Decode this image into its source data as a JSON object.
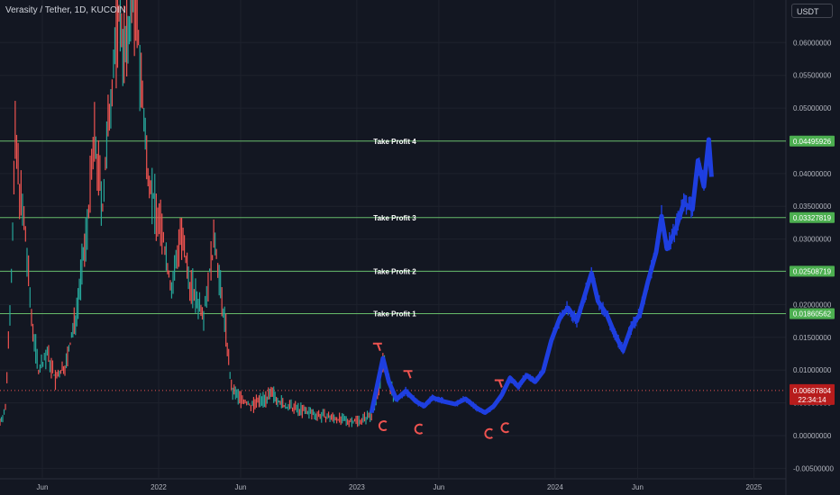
{
  "header": {
    "symbol_title": "Verasity / Tether, 1D, KUCOIN",
    "currency": "USDT"
  },
  "colors": {
    "background": "#131722",
    "up": "#26a69a",
    "down": "#ef5350",
    "projection": "#1e3fe0",
    "tp_line": "#66bb6a",
    "tp_badge": "#4caf50",
    "price_badge": "#b71c1c",
    "arc_color": "#ef5350"
  },
  "chart_data": {
    "type": "line",
    "title": "Verasity / Tether, 1D, KUCOIN",
    "xlabel": "",
    "ylabel": "",
    "y_ticks": [
      "0.06000000",
      "0.05500000",
      "0.05000000",
      "0.04500000",
      "0.04000000",
      "0.03500000",
      "0.03000000",
      "0.02500000",
      "0.02000000",
      "0.01500000",
      "0.01000000",
      "0.00500000",
      "0.00000000",
      "-0.00500000"
    ],
    "y_tick_values": [
      0.06,
      0.055,
      0.05,
      0.045,
      0.04,
      0.035,
      0.03,
      0.025,
      0.02,
      0.015,
      0.01,
      0.005,
      0.0,
      -0.005
    ],
    "ylim": [
      -0.0066,
      0.0665
    ],
    "x_ticks": [
      "Jun",
      "2022",
      "Jun",
      "2023",
      "Jun",
      "2024",
      "Jun",
      "2025"
    ],
    "x_tick_dates": [
      "2021-06-01",
      "2022-01-01",
      "2022-06-01",
      "2023-01-01",
      "2023-06-01",
      "2024-01-01",
      "2024-06-01",
      "2025-01-01"
    ],
    "xlim": [
      "2021-03-15",
      "2025-03-01"
    ],
    "series": [
      {
        "kind": "price-history",
        "points": [
          [
            "2021-03-15",
            0.0021
          ],
          [
            "2021-03-25",
            0.004
          ],
          [
            "2021-04-05",
            0.025
          ],
          [
            "2021-04-12",
            0.045
          ],
          [
            "2021-04-20",
            0.038
          ],
          [
            "2021-05-01",
            0.03
          ],
          [
            "2021-05-12",
            0.018
          ],
          [
            "2021-05-25",
            0.01
          ],
          [
            "2021-06-10",
            0.0125
          ],
          [
            "2021-06-25",
            0.0085
          ],
          [
            "2021-07-15",
            0.011
          ],
          [
            "2021-08-01",
            0.018
          ],
          [
            "2021-08-20",
            0.03
          ],
          [
            "2021-09-05",
            0.045
          ],
          [
            "2021-09-20",
            0.035
          ],
          [
            "2021-10-05",
            0.052
          ],
          [
            "2021-10-20",
            0.065
          ],
          [
            "2021-11-01",
            0.058
          ],
          [
            "2021-11-15",
            0.068
          ],
          [
            "2021-11-25",
            0.06
          ],
          [
            "2021-12-10",
            0.042
          ],
          [
            "2021-12-25",
            0.035
          ],
          [
            "2022-01-10",
            0.03
          ],
          [
            "2022-01-25",
            0.022
          ],
          [
            "2022-02-10",
            0.031
          ],
          [
            "2022-02-25",
            0.024
          ],
          [
            "2022-03-10",
            0.021
          ],
          [
            "2022-03-25",
            0.019
          ],
          [
            "2022-04-05",
            0.025
          ],
          [
            "2022-04-15",
            0.03
          ],
          [
            "2022-04-25",
            0.022
          ],
          [
            "2022-05-05",
            0.016
          ],
          [
            "2022-05-15",
            0.007
          ],
          [
            "2022-05-30",
            0.0058
          ],
          [
            "2022-06-20",
            0.0045
          ],
          [
            "2022-07-10",
            0.0055
          ],
          [
            "2022-08-01",
            0.0062
          ],
          [
            "2022-08-20",
            0.0045
          ],
          [
            "2022-09-15",
            0.004
          ],
          [
            "2022-10-15",
            0.0033
          ],
          [
            "2022-11-10",
            0.0028
          ],
          [
            "2022-12-15",
            0.0022
          ],
          [
            "2023-01-10",
            0.0024
          ],
          [
            "2023-01-28",
            0.0032
          ],
          [
            "2023-02-08",
            0.0068
          ],
          [
            "2023-02-18",
            0.011
          ],
          [
            "2023-03-01",
            0.0082
          ],
          [
            "2023-03-12",
            0.0052
          ]
        ]
      },
      {
        "kind": "projection",
        "points": [
          [
            "2023-01-28",
            0.0035
          ],
          [
            "2023-02-08",
            0.0078
          ],
          [
            "2023-02-18",
            0.0118
          ],
          [
            "2023-03-01",
            0.0082
          ],
          [
            "2023-03-15",
            0.0055
          ],
          [
            "2023-04-01",
            0.0068
          ],
          [
            "2023-04-20",
            0.0052
          ],
          [
            "2023-05-05",
            0.0045
          ],
          [
            "2023-05-20",
            0.0058
          ],
          [
            "2023-06-10",
            0.0052
          ],
          [
            "2023-07-01",
            0.0048
          ],
          [
            "2023-07-20",
            0.0056
          ],
          [
            "2023-08-10",
            0.0042
          ],
          [
            "2023-08-25",
            0.0035
          ],
          [
            "2023-09-10",
            0.0045
          ],
          [
            "2023-09-25",
            0.0062
          ],
          [
            "2023-10-10",
            0.0088
          ],
          [
            "2023-10-25",
            0.0075
          ],
          [
            "2023-11-10",
            0.0092
          ],
          [
            "2023-11-25",
            0.0082
          ],
          [
            "2023-12-10",
            0.0098
          ],
          [
            "2023-12-25",
            0.0145
          ],
          [
            "2024-01-10",
            0.018
          ],
          [
            "2024-01-25",
            0.0195
          ],
          [
            "2024-02-10",
            0.0175
          ],
          [
            "2024-02-25",
            0.0215
          ],
          [
            "2024-03-08",
            0.0248
          ],
          [
            "2024-03-20",
            0.0205
          ],
          [
            "2024-04-05",
            0.0185
          ],
          [
            "2024-04-20",
            0.0155
          ],
          [
            "2024-05-05",
            0.013
          ],
          [
            "2024-05-20",
            0.0165
          ],
          [
            "2024-06-05",
            0.0185
          ],
          [
            "2024-06-20",
            0.0235
          ],
          [
            "2024-07-05",
            0.028
          ],
          [
            "2024-07-15",
            0.0335
          ],
          [
            "2024-07-25",
            0.0285
          ],
          [
            "2024-08-10",
            0.0315
          ],
          [
            "2024-08-25",
            0.0355
          ],
          [
            "2024-09-10",
            0.0345
          ],
          [
            "2024-09-20",
            0.042
          ],
          [
            "2024-10-01",
            0.038
          ],
          [
            "2024-10-10",
            0.0452
          ],
          [
            "2024-10-15",
            0.0395
          ]
        ]
      }
    ],
    "horizontal_lines": [
      {
        "label": "Take Profit 4",
        "value": 0.04495926,
        "value_text": "0.04495926"
      },
      {
        "label": "Take Profit 3",
        "value": 0.03327819,
        "value_text": "0.03327819"
      },
      {
        "label": "Take Profit 2",
        "value": 0.02508719,
        "value_text": "0.02508719"
      },
      {
        "label": "Take Profit 1",
        "value": 0.01860562,
        "value_text": "0.01860562"
      }
    ],
    "current_price": {
      "value": 0.00687804,
      "value_text": "0.00687804",
      "countdown": "22:34:14"
    },
    "annotations": [
      {
        "shape": "T",
        "date": "2023-02-08",
        "value": 0.0135
      },
      {
        "shape": "C",
        "date": "2023-02-18",
        "value": 0.0015
      },
      {
        "shape": "T",
        "date": "2023-04-05",
        "value": 0.0093
      },
      {
        "shape": "C",
        "date": "2023-04-25",
        "value": 0.001
      },
      {
        "shape": "T",
        "date": "2023-09-20",
        "value": 0.0079
      },
      {
        "shape": "C",
        "date": "2023-09-01",
        "value": 0.0003
      },
      {
        "shape": "C",
        "date": "2023-10-01",
        "value": 0.0012
      }
    ],
    "grid": true,
    "legend": "none"
  }
}
